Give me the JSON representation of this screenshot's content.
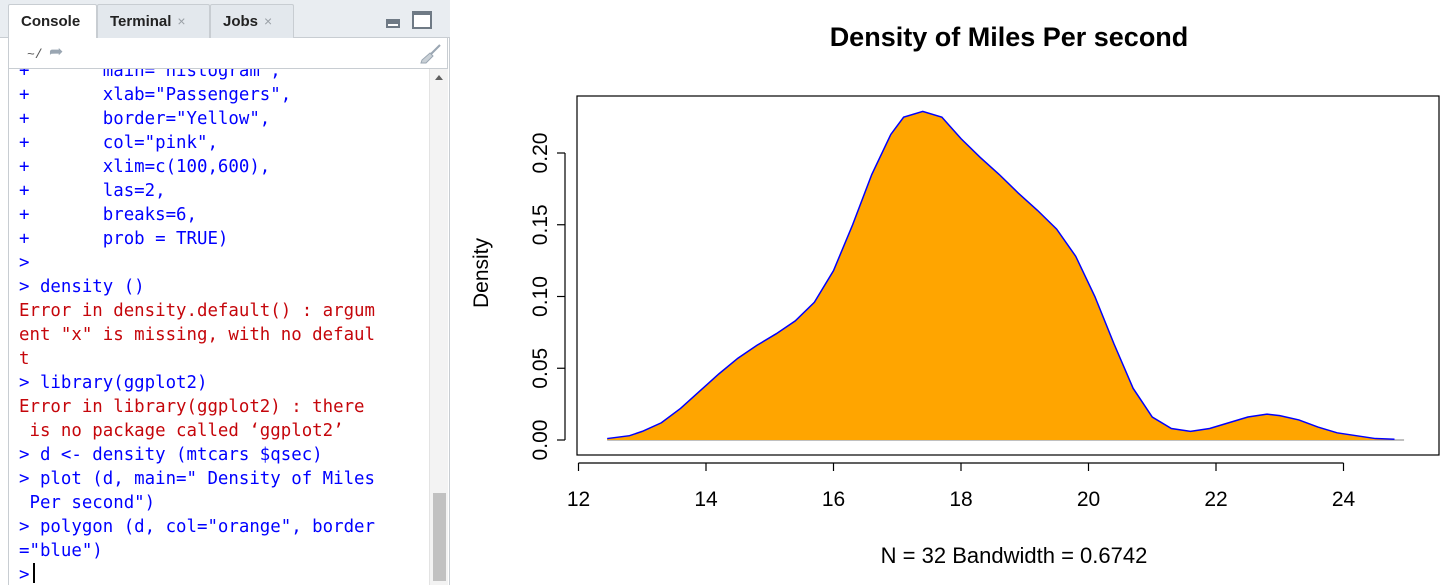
{
  "tabs": [
    {
      "label": "Console",
      "active": true,
      "closable": false
    },
    {
      "label": "Terminal",
      "active": false,
      "closable": true
    },
    {
      "label": "Jobs",
      "active": false,
      "closable": true
    }
  ],
  "pane_controls": {
    "minimize_icon": "minimize-icon",
    "maximize_icon": "maximize-icon"
  },
  "path_bar": {
    "path": "~/",
    "nav_icon": "path-arrow-icon",
    "clear_icon": "broom-icon"
  },
  "console": {
    "lines": [
      {
        "text": "+       main= histogram ,",
        "type": "code"
      },
      {
        "text": "+       xlab=\"Passengers\",",
        "type": "code"
      },
      {
        "text": "+       border=\"Yellow\",",
        "type": "code"
      },
      {
        "text": "+       col=\"pink\",",
        "type": "code"
      },
      {
        "text": "+       xlim=c(100,600),",
        "type": "code"
      },
      {
        "text": "+       las=2,",
        "type": "code"
      },
      {
        "text": "+       breaks=6,",
        "type": "code"
      },
      {
        "text": "+       prob = TRUE)",
        "type": "code"
      },
      {
        "text": ">",
        "type": "code"
      },
      {
        "text": "> density ()",
        "type": "code"
      },
      {
        "text": "Error in density.default() : argum",
        "type": "err"
      },
      {
        "text": "ent \"x\" is missing, with no defaul",
        "type": "err"
      },
      {
        "text": "t",
        "type": "err"
      },
      {
        "text": "> library(ggplot2)",
        "type": "code"
      },
      {
        "text": "Error in library(ggplot2) : there",
        "type": "err"
      },
      {
        "text": " is no package called ‘ggplot2’",
        "type": "err"
      },
      {
        "text": "> d <- density (mtcars $qsec)",
        "type": "code"
      },
      {
        "text": "> plot (d, main=\" Density of Miles",
        "type": "code"
      },
      {
        "text": " Per second\")",
        "type": "code"
      },
      {
        "text": "> polygon (d, col=\"orange\", border",
        "type": "code"
      },
      {
        "text": "=\"blue\")",
        "type": "code"
      }
    ],
    "prompt": ">"
  },
  "chart_data": {
    "type": "area",
    "title": "Density of Miles Per second",
    "xlabel": "N = 32   Bandwidth = 0.6742",
    "ylabel": "Density",
    "xlim": [
      12,
      25
    ],
    "ylim": [
      0,
      0.22
    ],
    "x_ticks": [
      12,
      14,
      16,
      18,
      20,
      22,
      24
    ],
    "y_ticks": [
      0.0,
      0.05,
      0.1,
      0.15,
      0.2
    ],
    "x_tick_labels": [
      "12",
      "14",
      "16",
      "18",
      "20",
      "22",
      "24"
    ],
    "y_tick_labels": [
      "0.00",
      "0.05",
      "0.10",
      "0.15",
      "0.20"
    ],
    "fill_color": "#ffa500",
    "border_color": "#0000ff",
    "baseline_color": "#c0c0c0",
    "series": [
      {
        "x": [
          12.45,
          12.8,
          13.0,
          13.3,
          13.6,
          13.9,
          14.2,
          14.5,
          14.8,
          15.1,
          15.4,
          15.7,
          16.0,
          16.3,
          16.6,
          16.9,
          17.1,
          17.4,
          17.7,
          18.0,
          18.3,
          18.6,
          18.9,
          19.2,
          19.5,
          19.8,
          20.1,
          20.4,
          20.7,
          21.0,
          21.3,
          21.6,
          21.9,
          22.2,
          22.5,
          22.8,
          23.0,
          23.3,
          23.6,
          23.9,
          24.2,
          24.5,
          24.8
        ],
        "y": [
          0.001,
          0.003,
          0.006,
          0.012,
          0.022,
          0.034,
          0.046,
          0.057,
          0.066,
          0.074,
          0.083,
          0.096,
          0.118,
          0.15,
          0.185,
          0.213,
          0.225,
          0.229,
          0.225,
          0.21,
          0.197,
          0.185,
          0.172,
          0.16,
          0.147,
          0.128,
          0.1,
          0.067,
          0.036,
          0.016,
          0.008,
          0.006,
          0.008,
          0.012,
          0.016,
          0.018,
          0.017,
          0.014,
          0.009,
          0.005,
          0.003,
          0.001,
          0.0005
        ]
      }
    ]
  }
}
